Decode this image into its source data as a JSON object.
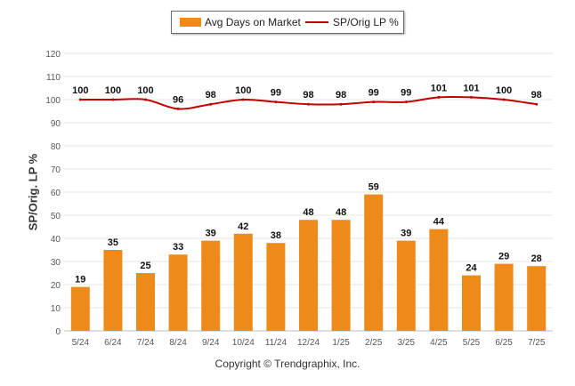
{
  "legend": {
    "bar_label": "Avg Days on Market",
    "line_label": "SP/Orig LP %"
  },
  "footer": {
    "copyright": "Copyright © Trendgraphix, Inc."
  },
  "colors": {
    "bar": "#ee8a19",
    "line": "#c00000",
    "grid": "#e6e6e6",
    "tick": "#555555"
  },
  "chart_data": {
    "type": "bar",
    "title": "",
    "xlabel": "",
    "ylabel": "SP/Orig. LP %",
    "ylim": [
      0,
      120
    ],
    "yticks": [
      0,
      10,
      20,
      30,
      40,
      50,
      60,
      70,
      80,
      90,
      100,
      110,
      120
    ],
    "grid": true,
    "legend_position": "top-center",
    "categories": [
      "5/24",
      "6/24",
      "7/24",
      "8/24",
      "9/24",
      "10/24",
      "11/24",
      "12/24",
      "1/25",
      "2/25",
      "3/25",
      "4/25",
      "5/25",
      "6/25",
      "7/25"
    ],
    "series": [
      {
        "name": "Avg Days on Market",
        "type": "bar",
        "values": [
          19,
          35,
          25,
          33,
          39,
          42,
          38,
          48,
          48,
          59,
          39,
          44,
          24,
          29,
          28
        ]
      },
      {
        "name": "SP/Orig LP %",
        "type": "line",
        "values": [
          100,
          100,
          100,
          96,
          98,
          100,
          99,
          98,
          98,
          99,
          99,
          101,
          101,
          100,
          98
        ]
      }
    ]
  }
}
